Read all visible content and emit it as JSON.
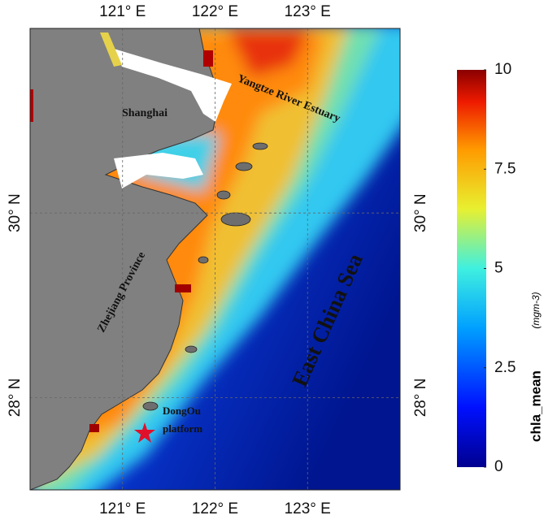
{
  "map": {
    "lonlim": [
      120,
      124
    ],
    "latlim": [
      27,
      32
    ],
    "lon_ticks": [
      {
        "value": 121,
        "label": "121° E"
      },
      {
        "value": 122,
        "label": "122° E"
      },
      {
        "value": 123,
        "label": "123° E"
      }
    ],
    "lat_ticks": [
      {
        "value": 30,
        "label": "30° N"
      },
      {
        "value": 28,
        "label": "28° N"
      }
    ],
    "labels": {
      "shanghai": "Shanghai",
      "estuary": "Yangtze River Estuary",
      "province": "Zhejiang Province",
      "sea": "East China Sea",
      "platform": [
        "DongOu",
        "platform"
      ]
    }
  },
  "colorbar": {
    "name": "chla_mean",
    "unit": "(mgm-3)",
    "lim": [
      0,
      10
    ],
    "ticks": [
      0,
      2.5,
      5,
      7.5,
      10
    ]
  }
}
